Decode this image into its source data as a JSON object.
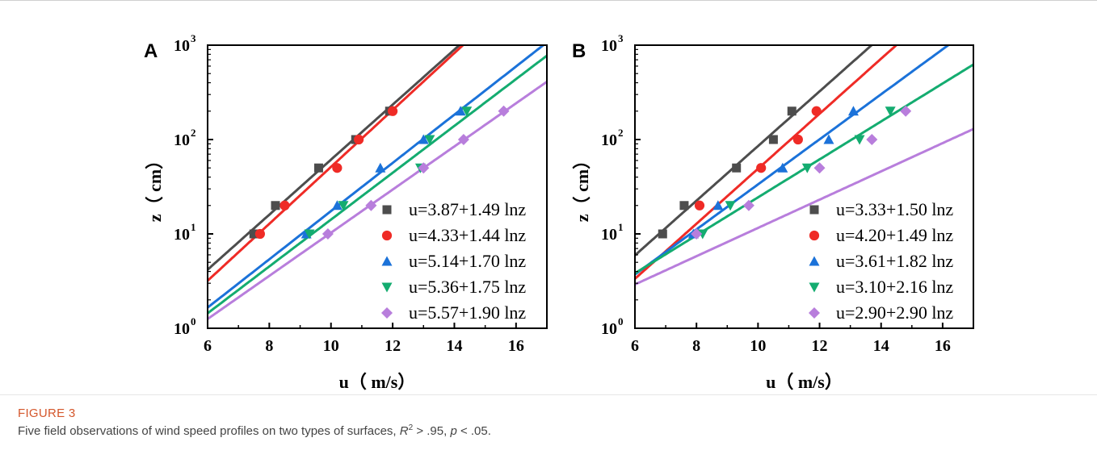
{
  "figure": {
    "label": "FIGURE 3",
    "caption": "Five field observations of wind speed profiles on two types of surfaces, R² > .95, p < .05."
  },
  "colors": {
    "gray": "#4d4d4d",
    "red": "#ef2b26",
    "blue": "#1b72d9",
    "green": "#14ac70",
    "purple": "#b87edc"
  },
  "chart_data": [
    {
      "panel": "A",
      "type": "scatter",
      "xlabel": "u（ m/s）",
      "ylabel": "z（ cm）",
      "xlim": [
        6,
        17
      ],
      "ylim": [
        1,
        1000
      ],
      "y_scale": "log",
      "xticks": [
        6,
        8,
        10,
        12,
        14,
        16
      ],
      "yticks": [
        {
          "value": 1,
          "base": "10",
          "exp": "0"
        },
        {
          "value": 10,
          "base": "10",
          "exp": "1"
        },
        {
          "value": 100,
          "base": "10",
          "exp": "2"
        },
        {
          "value": 1000,
          "base": "10",
          "exp": "3"
        }
      ],
      "legend_position": "bottom-right",
      "series": [
        {
          "name": "u=3.87+1.49 lnz",
          "color": "#4d4d4d",
          "marker": "square",
          "a": 3.87,
          "b": 1.49,
          "points": [
            [
              7.5,
              10
            ],
            [
              8.2,
              20
            ],
            [
              9.6,
              50
            ],
            [
              10.8,
              100
            ],
            [
              11.9,
              200
            ]
          ]
        },
        {
          "name": "u=4.33+1.44 lnz",
          "color": "#ef2b26",
          "marker": "circle",
          "a": 4.33,
          "b": 1.44,
          "points": [
            [
              7.7,
              10
            ],
            [
              8.5,
              20
            ],
            [
              10.2,
              50
            ],
            [
              10.9,
              100
            ],
            [
              12.0,
              200
            ]
          ]
        },
        {
          "name": "u=5.14+1.70 lnz",
          "color": "#1b72d9",
          "marker": "triangle-up",
          "a": 5.14,
          "b": 1.7,
          "points": [
            [
              9.2,
              10
            ],
            [
              10.2,
              20
            ],
            [
              11.6,
              50
            ],
            [
              13.0,
              100
            ],
            [
              14.2,
              200
            ]
          ]
        },
        {
          "name": "u=5.36+1.75 lnz",
          "color": "#14ac70",
          "marker": "triangle-down",
          "a": 5.36,
          "b": 1.75,
          "points": [
            [
              9.3,
              10
            ],
            [
              10.4,
              20
            ],
            [
              12.9,
              50
            ],
            [
              13.2,
              100
            ],
            [
              14.4,
              200
            ]
          ]
        },
        {
          "name": "u=5.57+1.90 lnz",
          "color": "#b87edc",
          "marker": "diamond",
          "a": 5.57,
          "b": 1.9,
          "points": [
            [
              9.9,
              10
            ],
            [
              11.3,
              20
            ],
            [
              13.0,
              50
            ],
            [
              14.3,
              100
            ],
            [
              15.6,
              200
            ]
          ]
        }
      ]
    },
    {
      "panel": "B",
      "type": "scatter",
      "xlabel": "u（ m/s）",
      "ylabel": "z（ cm）",
      "xlim": [
        6,
        17
      ],
      "ylim": [
        1,
        1000
      ],
      "y_scale": "log",
      "xticks": [
        6,
        8,
        10,
        12,
        14,
        16
      ],
      "yticks": [
        {
          "value": 1,
          "base": "10",
          "exp": "0"
        },
        {
          "value": 10,
          "base": "10",
          "exp": "1"
        },
        {
          "value": 100,
          "base": "10",
          "exp": "2"
        },
        {
          "value": 1000,
          "base": "10",
          "exp": "3"
        }
      ],
      "legend_position": "bottom-right",
      "series": [
        {
          "name": "u=3.33+1.50 lnz",
          "color": "#4d4d4d",
          "marker": "square",
          "a": 3.33,
          "b": 1.5,
          "points": [
            [
              6.9,
              10
            ],
            [
              7.6,
              20
            ],
            [
              9.3,
              50
            ],
            [
              10.5,
              100
            ],
            [
              11.1,
              200
            ]
          ]
        },
        {
          "name": "u=4.20+1.49 lnz",
          "color": "#ef2b26",
          "marker": "circle",
          "a": 4.2,
          "b": 1.49,
          "points": [
            [
              8.1,
              20
            ],
            [
              10.1,
              50
            ],
            [
              11.3,
              100
            ],
            [
              11.9,
              200
            ]
          ]
        },
        {
          "name": "u=3.61+1.82 lnz",
          "color": "#1b72d9",
          "marker": "triangle-up",
          "a": 3.61,
          "b": 1.82,
          "points": [
            [
              7.9,
              10
            ],
            [
              8.7,
              20
            ],
            [
              10.8,
              50
            ],
            [
              12.3,
              100
            ],
            [
              13.1,
              200
            ]
          ]
        },
        {
          "name": "u=3.10+2.16 lnz",
          "color": "#14ac70",
          "marker": "triangle-down",
          "a": 3.1,
          "b": 2.16,
          "points": [
            [
              8.2,
              10
            ],
            [
              9.1,
              20
            ],
            [
              11.6,
              50
            ],
            [
              13.3,
              100
            ],
            [
              14.3,
              200
            ]
          ]
        },
        {
          "name": "u=2.90+2.90 lnz",
          "color": "#b87edc",
          "marker": "diamond",
          "a": 2.9,
          "b": 2.9,
          "points": [
            [
              8.0,
              10
            ],
            [
              9.7,
              20
            ],
            [
              12.0,
              50
            ],
            [
              13.7,
              100
            ],
            [
              14.8,
              200
            ]
          ]
        }
      ]
    }
  ]
}
